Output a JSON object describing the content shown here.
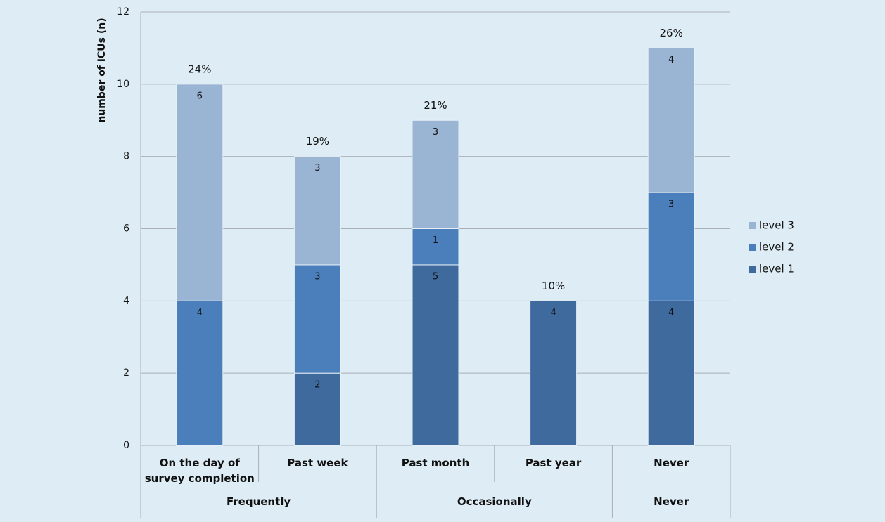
{
  "chart_data": {
    "type": "stacked_bar",
    "ylabel": "number of ICUs (n)",
    "categories": [
      "On the day of survey completion",
      "Past week",
      "Past month",
      "Past year",
      "Never"
    ],
    "groups": [
      {
        "name": "Frequently",
        "count": 2
      },
      {
        "name": "Occasionally",
        "count": 2
      },
      {
        "name": "Never",
        "count": 1
      }
    ],
    "series": [
      {
        "name": "level 1",
        "color": "#3f6a9e",
        "values": [
          null,
          2,
          5,
          4,
          4
        ]
      },
      {
        "name": "level 2",
        "color": "#4a7fbb",
        "values": [
          4,
          3,
          1,
          null,
          3
        ]
      },
      {
        "name": "level 3",
        "color": "#9ab4d4",
        "values": [
          6,
          3,
          3,
          null,
          4
        ]
      }
    ],
    "totals": {
      "values": [
        24,
        19,
        21,
        10,
        26
      ],
      "value_labels": [
        "24%",
        "19%",
        "21%",
        "10%",
        "26%"
      ]
    },
    "ylim": [
      0,
      12
    ],
    "yticks": [
      0,
      2,
      4,
      6,
      8,
      10,
      12
    ],
    "grid": true,
    "legend": "right"
  }
}
